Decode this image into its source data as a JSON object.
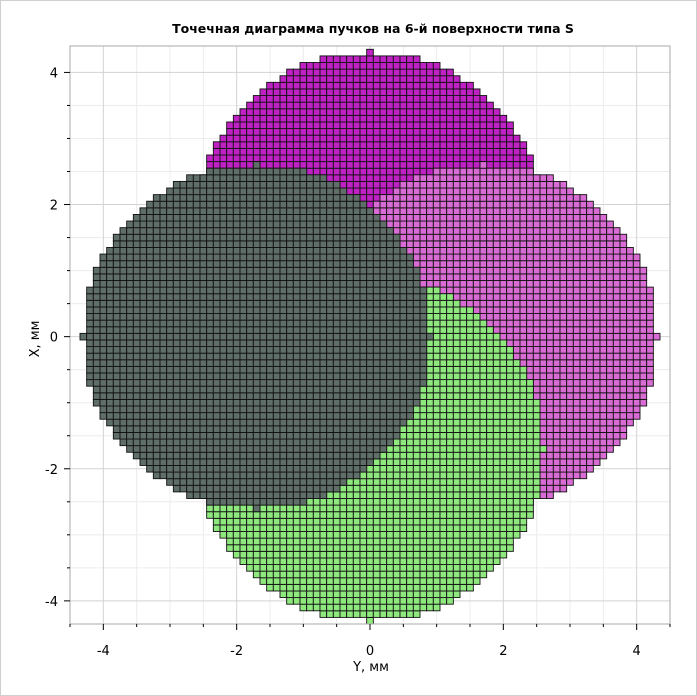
{
  "chart_data": {
    "type": "scatter",
    "title": "Точечная диаграмма пучков на 6-й поверхности типа S",
    "xlabel": "Y, мм",
    "ylabel": "X, мм",
    "xlim": [
      -4.5,
      4.5
    ],
    "ylim": [
      -4.35,
      4.4
    ],
    "xticks": [
      -4,
      -2,
      0,
      2,
      4
    ],
    "yticks": [
      -4,
      -2,
      0,
      2,
      4
    ],
    "xtick_labels": [
      "-4",
      "-2",
      "0",
      "2",
      "4"
    ],
    "ytick_labels": [
      "-4",
      "-2",
      "0",
      "2",
      "4"
    ],
    "grid": true,
    "marker": "square",
    "grid_spacing_mm": 0.1,
    "series": [
      {
        "color": "#c021c4",
        "center": [
          0,
          1.7
        ],
        "radius": 2.6
      },
      {
        "color": "#d96bd4",
        "center": [
          1.7,
          0
        ],
        "radius": 2.6
      },
      {
        "color": "#8fe87e",
        "center": [
          0,
          -1.7
        ],
        "radius": 2.6
      },
      {
        "color": "#5f6e68",
        "center": [
          -1.7,
          0
        ],
        "radius": 2.6
      }
    ]
  }
}
